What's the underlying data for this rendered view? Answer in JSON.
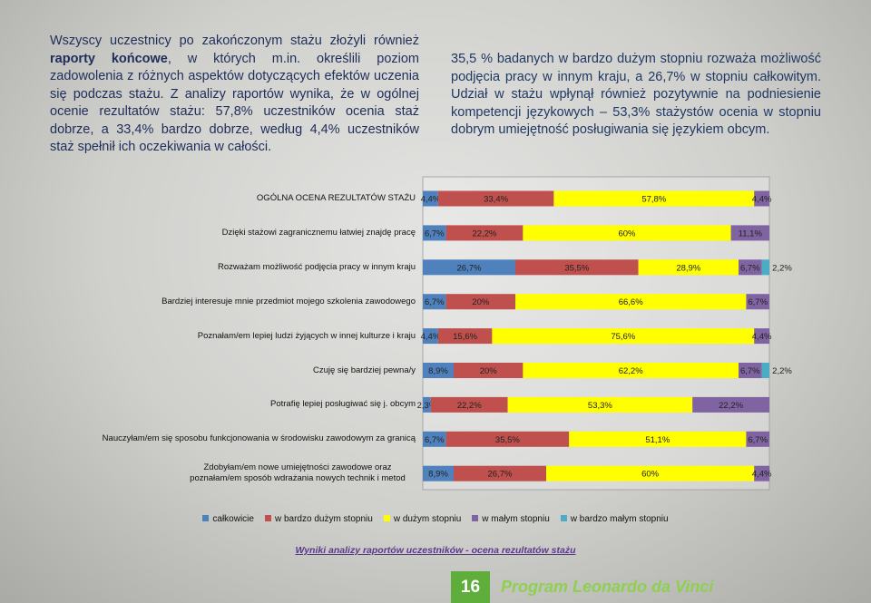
{
  "text_left": [
    "Wszyscy uczestnicy po zakończonym stażu złożyli również ",
    "raporty końcowe",
    ", w których m.in. określili poziom zadowolenia z różnych aspektów dotyczących efektów uczenia się podczas stażu. Z analizy raportów wynika, że w ogólnej ocenie rezultatów stażu: 57,8% uczestników ocenia staż dobrze, a 33,4% bardzo dobrze, według 4,4% uczestników staż spełnił ich oczekiwania w całości."
  ],
  "text_right": "35,5 % badanych w bardzo dużym stopniu rozważa możliwość podjęcia pracy w innym kraju, a 26,7% w stopniu całkowitym. Udział w stażu wpłynął również pozytywnie na podniesienie kompetencji językowych – 53,3% stażystów ocenia w stopniu dobrym umiejętność posługiwania się językiem obcym.",
  "chart_data": {
    "type": "stacked-bar-horizontal",
    "categories": [
      "OGÓLNA OCENA REZULTATÓW STAŻU",
      "Dzięki stażowi zagranicznemu łatwiej znajdę pracę",
      "Rozważam możliwość podjęcia pracy w innym kraju",
      "Bardziej interesuje mnie przedmiot mojego szkolenia zawodowego",
      "Poznałam/em lepiej ludzi żyjących w innej kulturze i kraju",
      "Czuję się bardziej pewna/y",
      "Potrafię lepiej posługiwać się j. obcym",
      "Nauczyłam/em się sposobu funkcjonowania w środowisku zawodowym za granicą",
      "Zdobyłam/em nowe umiejętności zawodowe oraz poznałam/em sposób wdrażania nowych technik i metod"
    ],
    "xlim": [
      0,
      100
    ],
    "series": [
      {
        "name": "całkowicie",
        "color": "#4f81bd",
        "values": [
          4.4,
          6.7,
          26.7,
          6.7,
          4.4,
          8.9,
          2.3,
          6.7,
          8.9
        ],
        "value_labels": [
          "4,4%",
          "6,7%",
          "26,7%",
          "6,7%",
          "4,4%",
          "8,9%",
          "2,3%",
          "6,7%",
          "8,9%"
        ]
      },
      {
        "name": "w bardzo dużym stopniu",
        "color": "#c0504d",
        "values": [
          33.4,
          22.2,
          35.5,
          20,
          15.6,
          20,
          22.2,
          35.5,
          26.7
        ],
        "value_labels": [
          "33,4%",
          "22,2%",
          "35,5%",
          "20%",
          "15,6%",
          "20%",
          "22,2%",
          "35,5%",
          "26,7%"
        ]
      },
      {
        "name": "w dużym stopniu",
        "color": "#ffff00",
        "values": [
          57.8,
          60,
          28.9,
          66.6,
          75.6,
          62.2,
          53.3,
          51.1,
          60
        ],
        "value_labels": [
          "57,8%",
          "60%",
          "28,9%",
          "66,6%",
          "75,6%",
          "62,2%",
          "53,3%",
          "51,1%",
          "60%"
        ]
      },
      {
        "name": "w małym stopniu",
        "color": "#8064a2",
        "values": [
          4.4,
          11.1,
          6.7,
          6.7,
          4.4,
          6.7,
          22.2,
          6.7,
          4.4
        ],
        "value_labels": [
          "4,4%",
          "11,1%",
          "6,7%",
          "6,7%",
          "4,4%",
          "6,7%",
          "22,2%",
          "6,7%",
          "4,4%"
        ]
      },
      {
        "name": "w bardzo małym stopniu",
        "color": "#4bacc6",
        "values": [
          null,
          null,
          2.2,
          null,
          null,
          2.2,
          null,
          null,
          null
        ],
        "value_labels": [
          null,
          null,
          "2,2%",
          null,
          null,
          "2,2%",
          null,
          null,
          null
        ]
      }
    ]
  },
  "caption": "Wyniki analizy raportów uczestników - ocena rezultatów stażu",
  "page_number": "16",
  "program": "Program Leonardo da Vinci"
}
